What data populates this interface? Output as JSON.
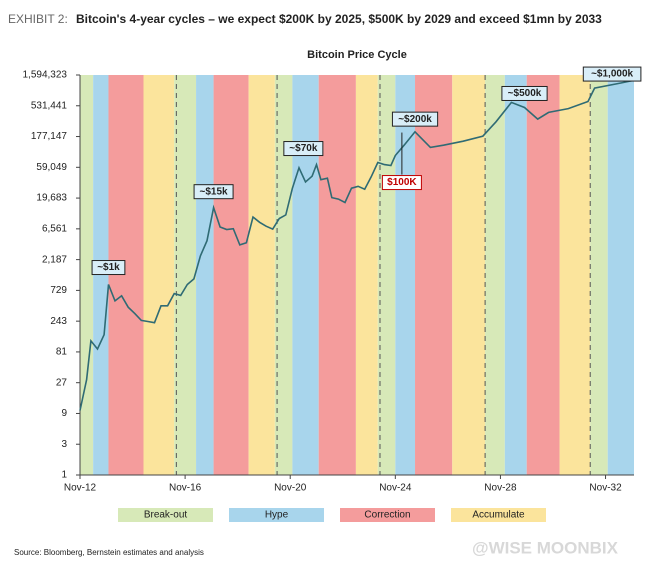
{
  "header": {
    "label": "EXHIBIT 2:",
    "title": "Bitcoin's 4-year cycles – we expect $200K by 2025, $500K by 2029 and exceed $1mn by 2033"
  },
  "chart_data": {
    "type": "line",
    "title": "Bitcoin Price Cycle",
    "log_scale": true,
    "xlim": [
      "2012-11",
      "2033-12"
    ],
    "xticks": [
      {
        "value": "2012-11",
        "label": "Nov-12"
      },
      {
        "value": "2016-11",
        "label": "Nov-16"
      },
      {
        "value": "2020-11",
        "label": "Nov-20"
      },
      {
        "value": "2024-11",
        "label": "Nov-24"
      },
      {
        "value": "2028-11",
        "label": "Nov-28"
      },
      {
        "value": "2032-11",
        "label": "Nov-32"
      }
    ],
    "ylim": [
      1,
      1594323
    ],
    "yticks": [
      1,
      3,
      9,
      27,
      81,
      243,
      729,
      {
        "value": 2187,
        "label": "2,187"
      },
      {
        "value": 6561,
        "label": "6,561"
      },
      {
        "value": 19683,
        "label": "19,683"
      },
      {
        "value": 59049,
        "label": "59,049"
      },
      {
        "value": 177147,
        "label": "177,147"
      },
      {
        "value": 531441,
        "label": "531,441"
      },
      {
        "value": 1594323,
        "label": "1,594,323"
      }
    ],
    "legend": [
      {
        "name": "Break-out",
        "color": "#d7e9b8"
      },
      {
        "name": "Hype",
        "color": "#a8d5ec"
      },
      {
        "name": "Correction",
        "color": "#f49c9c"
      },
      {
        "name": "Accumulate",
        "color": "#fbe49c"
      }
    ],
    "phases": [
      {
        "phase": 0,
        "start": "2012-11",
        "end": "2013-05"
      },
      {
        "phase": 1,
        "start": "2013-05",
        "end": "2013-12"
      },
      {
        "phase": 2,
        "start": "2013-12",
        "end": "2015-04"
      },
      {
        "phase": 3,
        "start": "2015-04",
        "end": "2016-06"
      },
      {
        "phase": 0,
        "start": "2016-06",
        "end": "2017-04"
      },
      {
        "phase": 1,
        "start": "2017-04",
        "end": "2017-12"
      },
      {
        "phase": 2,
        "start": "2017-12",
        "end": "2019-04"
      },
      {
        "phase": 3,
        "start": "2019-04",
        "end": "2020-04"
      },
      {
        "phase": 0,
        "start": "2020-04",
        "end": "2020-12"
      },
      {
        "phase": 1,
        "start": "2020-12",
        "end": "2021-12"
      },
      {
        "phase": 2,
        "start": "2021-12",
        "end": "2023-05"
      },
      {
        "phase": 3,
        "start": "2023-05",
        "end": "2024-03"
      },
      {
        "phase": 0,
        "start": "2024-03",
        "end": "2024-11"
      },
      {
        "phase": 1,
        "start": "2024-11",
        "end": "2025-08"
      },
      {
        "phase": 2,
        "start": "2025-08",
        "end": "2027-01"
      },
      {
        "phase": 3,
        "start": "2027-01",
        "end": "2028-04"
      },
      {
        "phase": 0,
        "start": "2028-04",
        "end": "2029-01"
      },
      {
        "phase": 1,
        "start": "2029-01",
        "end": "2029-11"
      },
      {
        "phase": 2,
        "start": "2029-11",
        "end": "2031-02"
      },
      {
        "phase": 3,
        "start": "2031-02",
        "end": "2032-04"
      },
      {
        "phase": 0,
        "start": "2032-04",
        "end": "2032-12"
      },
      {
        "phase": 1,
        "start": "2032-12",
        "end": "2033-12"
      }
    ],
    "halvings": [
      "2016-07",
      "2020-05",
      "2024-04",
      "2028-04",
      "2032-04"
    ],
    "x": [
      "2012-11",
      "2013-02",
      "2013-04",
      "2013-07",
      "2013-10",
      "2013-12",
      "2014-03",
      "2014-06",
      "2014-09",
      "2014-12",
      "2015-03",
      "2015-06",
      "2015-09",
      "2015-12",
      "2016-03",
      "2016-06",
      "2016-09",
      "2016-12",
      "2017-03",
      "2017-06",
      "2017-09",
      "2017-12",
      "2018-03",
      "2018-06",
      "2018-09",
      "2018-12",
      "2019-03",
      "2019-06",
      "2019-09",
      "2019-12",
      "2020-03",
      "2020-06",
      "2020-09",
      "2020-12",
      "2021-03",
      "2021-06",
      "2021-09",
      "2021-11",
      "2022-01",
      "2022-04",
      "2022-06",
      "2022-09",
      "2022-12",
      "2023-03",
      "2023-06",
      "2023-09",
      "2023-12",
      "2024-03",
      "2024-06",
      "2024-09",
      "2024-11",
      "2025-03",
      "2025-08",
      "2026-03",
      "2026-09",
      "2027-06",
      "2028-03",
      "2028-09",
      "2029-04",
      "2029-10",
      "2030-04",
      "2030-09",
      "2031-06",
      "2032-03",
      "2032-06",
      "2033-06",
      "2033-11"
    ],
    "series": [
      {
        "color": "#2f6b74",
        "values": [
          10,
          30,
          120,
          90,
          150,
          900,
          500,
          600,
          400,
          320,
          250,
          240,
          230,
          420,
          420,
          650,
          610,
          900,
          1100,
          2500,
          4300,
          14000,
          7000,
          6400,
          6600,
          3700,
          4000,
          10000,
          8300,
          7200,
          6500,
          9500,
          10800,
          28000,
          58000,
          35000,
          43000,
          65000,
          38000,
          40000,
          20000,
          19000,
          16800,
          28000,
          30000,
          27000,
          42000,
          70000,
          65000,
          63000,
          90000,
          130000,
          210000,
          120000,
          130000,
          150000,
          180000,
          300000,
          600000,
          500000,
          330000,
          420000,
          480000,
          620000,
          1000000,
          1200000,
          1300000
        ]
      }
    ],
    "annotations": [
      {
        "text": "~$1k",
        "x": "2013-12",
        "y": 1000
      },
      {
        "text": "~$15k",
        "x": "2017-12",
        "y": 15000
      },
      {
        "text": "~$70k",
        "x": "2021-05",
        "y": 70000
      },
      {
        "text": "~$200k",
        "x": "2025-08",
        "y": 200000
      },
      {
        "text": "$100K",
        "x": "2025-02",
        "y": 100000,
        "color": "#c00000",
        "below": true
      },
      {
        "text": "~$500k",
        "x": "2029-10",
        "y": 500000
      },
      {
        "text": "~$1,000k",
        "x": "2033-02",
        "y": 1000000
      }
    ]
  },
  "source": "Source: Bloomberg, Bernstein estimates and analysis",
  "watermark": "@WISE MOONBIX"
}
